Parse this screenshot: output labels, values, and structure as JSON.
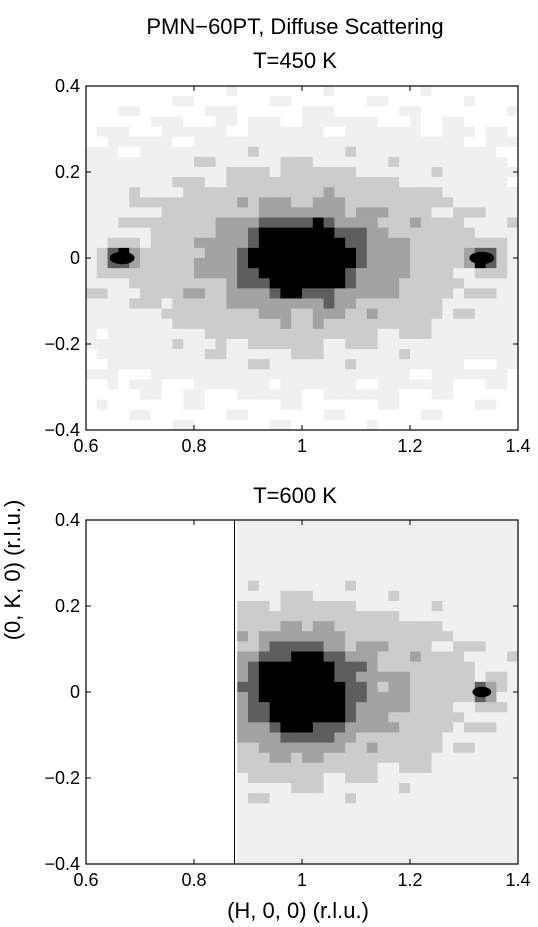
{
  "figure": {
    "title_line1": "PMN−60PT, Diffuse Scattering",
    "shared_ylabel": "(0, K, 0) (r.l.u.)",
    "shared_xlabel": "(H, 0, 0) (r.l.u.)"
  },
  "chart_data": [
    {
      "type": "heatmap",
      "title": "T=450 K",
      "xlim": [
        0.6,
        1.4
      ],
      "ylim": [
        -0.4,
        0.4
      ],
      "xticks": [
        "0.6",
        "0.8",
        "1",
        "1.2",
        "1.4"
      ],
      "yticks": [
        "0.4",
        "0.2",
        "0",
        "−0.2",
        "−0.4"
      ],
      "colormap": "gray (white = low, black = high)",
      "contour_levels": 5,
      "features": [
        {
          "name": "main diffuse peak",
          "h": 1.0,
          "k": 0.0,
          "h_halfwidth": 0.06,
          "k_halfwidth": 0.05,
          "level": 5
        },
        {
          "name": "side peak",
          "h": 0.667,
          "k": 0.0,
          "h_halfwidth": 0.02,
          "k_halfwidth": 0.012,
          "level": 5
        },
        {
          "name": "side peak",
          "h": 1.333,
          "k": 0.0,
          "h_halfwidth": 0.02,
          "k_halfwidth": 0.012,
          "level": 5
        }
      ]
    },
    {
      "type": "heatmap",
      "title": "T=600 K",
      "xlim": [
        0.6,
        1.4
      ],
      "ylim": [
        -0.4,
        0.4
      ],
      "xticks": [
        "0.6",
        "0.8",
        "1",
        "1.2",
        "1.4"
      ],
      "yticks": [
        "0.4",
        "0.2",
        "0",
        "−0.2",
        "−0.4"
      ],
      "colormap": "gray (white = low, black = high)",
      "contour_levels": 5,
      "no_data_below_h": 0.875,
      "features": [
        {
          "name": "main diffuse peak",
          "h": 1.0,
          "k": 0.0,
          "h_halfwidth": 0.05,
          "k_halfwidth": 0.06,
          "level": 5
        },
        {
          "name": "side peak",
          "h": 1.333,
          "k": 0.0,
          "h_halfwidth": 0.015,
          "k_halfwidth": 0.01,
          "level": 5
        }
      ]
    }
  ]
}
